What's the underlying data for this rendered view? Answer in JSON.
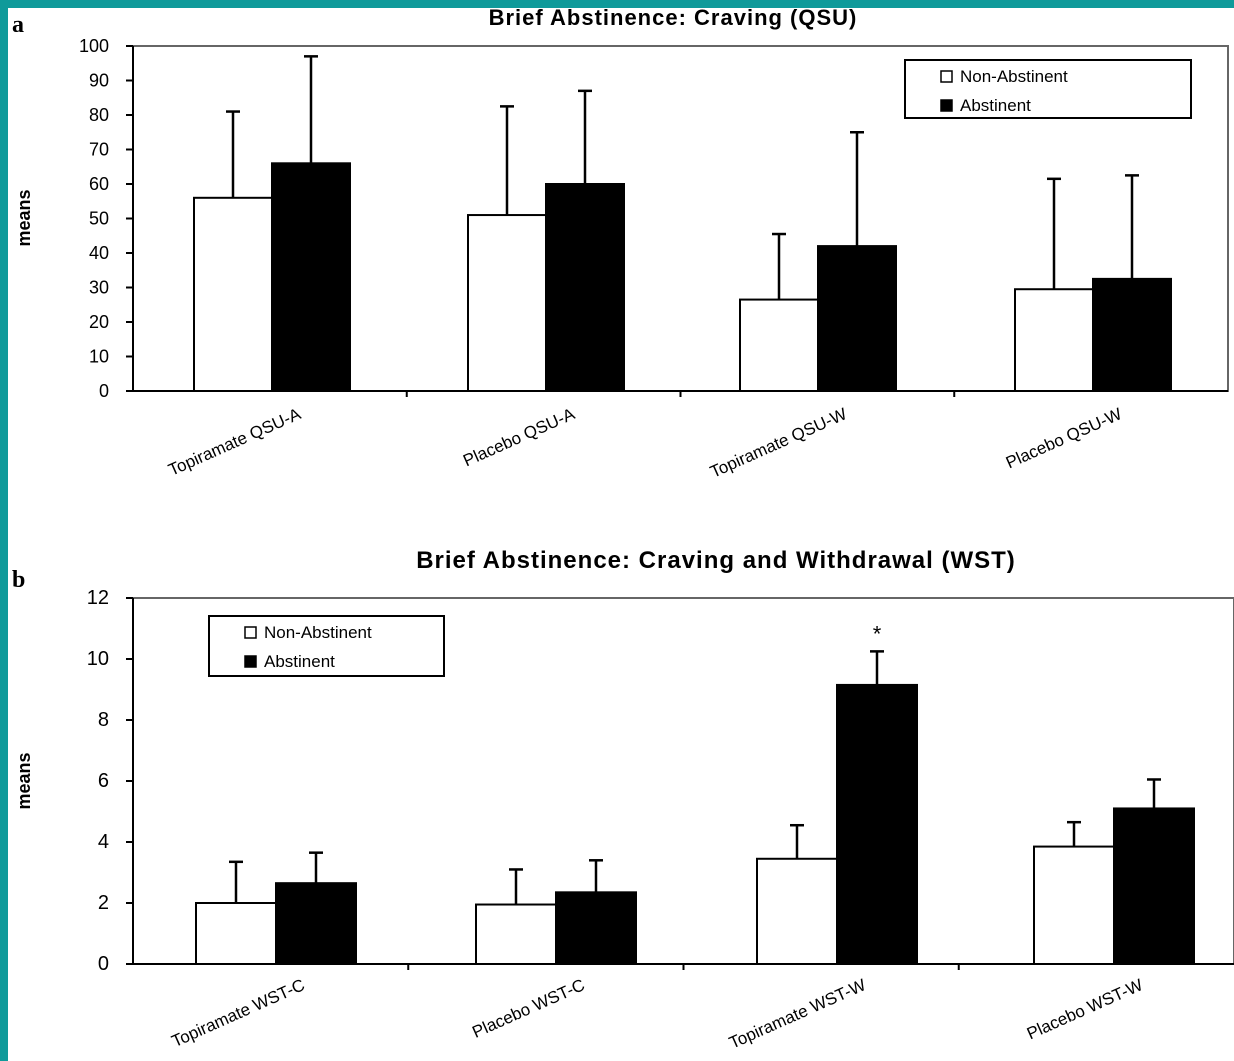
{
  "colors": {
    "frame": "#0f9a9a",
    "background": "#ffffff",
    "non_abstinent_fill": "#ffffff",
    "abstinent_fill": "#000000"
  },
  "chart_data": [
    {
      "type": "bar",
      "panel_label": "a",
      "title": "Brief Abstinence: Craving (QSU)",
      "xlabel": "",
      "ylabel": "means",
      "ylim": [
        0,
        100
      ],
      "yticks": [
        "0",
        "10",
        "20",
        "30",
        "40",
        "50",
        "60",
        "70",
        "80",
        "90",
        "100"
      ],
      "categories": [
        "Topiramate QSU-A",
        "Placebo QSU-A",
        "Topiramate QSU-W",
        "Placebo QSU-W"
      ],
      "series": [
        {
          "name": "Non-Abstinent",
          "values": [
            56,
            51,
            26.5,
            29.5
          ],
          "error_upper": [
            81,
            82.5,
            45.5,
            61.5
          ]
        },
        {
          "name": "Abstinent",
          "values": [
            66,
            60,
            42,
            32.5
          ],
          "error_upper": [
            97,
            87,
            75,
            62.5
          ]
        }
      ],
      "legend": {
        "position": "top-right",
        "entries": [
          "Non-Abstinent",
          "Abstinent"
        ]
      },
      "annotations": [],
      "grid": false
    },
    {
      "type": "bar",
      "panel_label": "b",
      "title": "Brief Abstinence: Craving and Withdrawal (WST)",
      "xlabel": "",
      "ylabel": "means",
      "ylim": [
        0,
        12
      ],
      "yticks": [
        "0",
        "2",
        "4",
        "6",
        "8",
        "10",
        "12"
      ],
      "categories": [
        "Topiramate WST-C",
        "Placebo WST-C",
        "Topiramate WST-W",
        "Placebo WST-W"
      ],
      "series": [
        {
          "name": "Non-Abstinent",
          "values": [
            2.0,
            1.95,
            3.45,
            3.85
          ],
          "error_upper": [
            3.35,
            3.1,
            4.55,
            4.65
          ]
        },
        {
          "name": "Abstinent",
          "values": [
            2.65,
            2.35,
            9.15,
            5.1
          ],
          "error_upper": [
            3.65,
            3.4,
            10.25,
            6.05
          ]
        }
      ],
      "legend": {
        "position": "top-left",
        "entries": [
          "Non-Abstinent",
          "Abstinent"
        ]
      },
      "annotations": [
        {
          "text": "*",
          "category": "Topiramate WST-W",
          "series": "Abstinent"
        }
      ],
      "grid": false
    }
  ]
}
